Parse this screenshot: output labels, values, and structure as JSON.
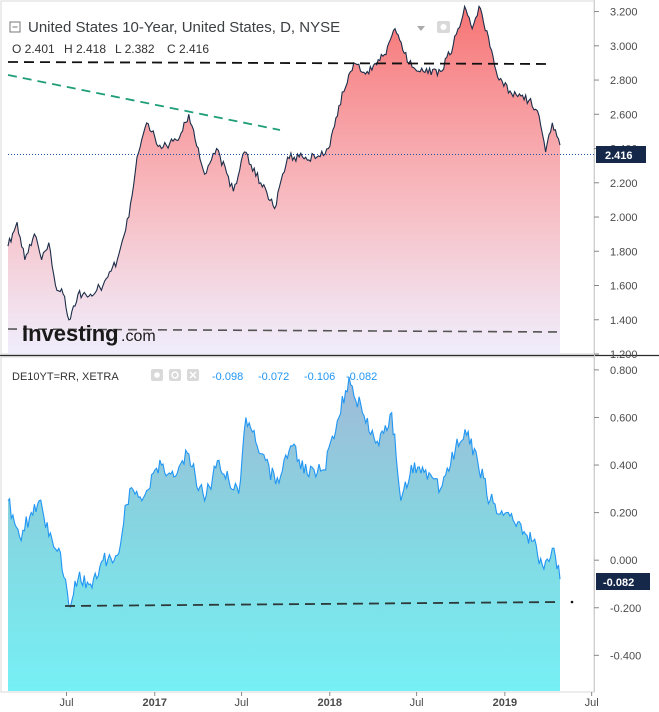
{
  "chart_data": [
    {
      "type": "area",
      "title": "United States 10-Year, United States, D, NYSE",
      "ohlc": {
        "o": "O 2.401",
        "h": "H 2.418",
        "l": "L 2.382",
        "c": "C 2.416"
      },
      "last_value": "2.416",
      "ylim": [
        1.2,
        3.25
      ],
      "yticks": [
        "3.200",
        "3.000",
        "2.800",
        "2.600",
        "2.400",
        "2.200",
        "2.000",
        "1.800",
        "1.600",
        "1.400",
        "1.200"
      ],
      "x_start": "2016-03-01",
      "x_end": "2019-04-26",
      "series": [
        {
          "x": [
            "2016-03-01",
            "2016-03-20",
            "2016-04-05",
            "2016-04-25",
            "2016-05-10",
            "2016-05-25",
            "2016-06-08",
            "2016-06-24",
            "2016-07-06",
            "2016-07-25",
            "2016-08-20",
            "2016-09-15",
            "2016-10-15",
            "2016-11-08",
            "2016-11-25",
            "2016-12-15",
            "2017-01-15",
            "2017-02-15",
            "2017-03-13",
            "2017-04-15",
            "2017-05-10",
            "2017-06-14",
            "2017-07-07",
            "2017-08-10",
            "2017-09-08",
            "2017-10-05",
            "2017-11-05",
            "2017-12-05",
            "2017-12-29",
            "2018-01-20",
            "2018-02-20",
            "2018-03-20",
            "2018-04-25",
            "2018-05-17",
            "2018-06-15",
            "2018-07-15",
            "2018-08-20",
            "2018-09-15",
            "2018-10-09",
            "2018-10-25",
            "2018-11-08",
            "2018-11-28",
            "2018-12-20",
            "2019-01-15",
            "2019-02-20",
            "2019-03-10",
            "2019-03-27",
            "2019-04-10",
            "2019-04-26"
          ],
          "values": [
            1.83,
            1.97,
            1.75,
            1.9,
            1.75,
            1.85,
            1.6,
            1.55,
            1.4,
            1.55,
            1.55,
            1.6,
            1.75,
            2.0,
            2.35,
            2.55,
            2.4,
            2.45,
            2.6,
            2.25,
            2.4,
            2.15,
            2.38,
            2.2,
            2.05,
            2.35,
            2.35,
            2.35,
            2.4,
            2.65,
            2.9,
            2.85,
            2.95,
            3.1,
            2.9,
            2.85,
            2.85,
            3.0,
            3.23,
            3.1,
            3.23,
            3.05,
            2.8,
            2.72,
            2.68,
            2.62,
            2.38,
            2.55,
            2.42
          ]
        }
      ],
      "annotations": [
        "Investing.com"
      ]
    },
    {
      "type": "area",
      "title": "DE10YT=RR, XETRA",
      "values_text": [
        "-0.098",
        "-0.072",
        "-0.106",
        "-0.082"
      ],
      "last_value": "-0.082",
      "ylim": [
        -0.55,
        0.85
      ],
      "yticks": [
        "0.800",
        "0.600",
        "0.400",
        "0.200",
        "0.000",
        "-0.200",
        "-0.400"
      ],
      "series": [
        {
          "x": [
            "2016-03-01",
            "2016-03-25",
            "2016-04-15",
            "2016-05-05",
            "2016-05-25",
            "2016-06-15",
            "2016-07-06",
            "2016-07-25",
            "2016-08-20",
            "2016-09-15",
            "2016-10-15",
            "2016-11-10",
            "2016-12-05",
            "2017-01-15",
            "2017-02-10",
            "2017-03-10",
            "2017-04-15",
            "2017-05-15",
            "2017-06-25",
            "2017-07-10",
            "2017-08-20",
            "2017-09-10",
            "2017-10-15",
            "2017-11-15",
            "2017-12-20",
            "2018-01-20",
            "2018-02-10",
            "2018-03-10",
            "2018-04-10",
            "2018-05-10",
            "2018-05-29",
            "2018-06-20",
            "2018-07-20",
            "2018-08-20",
            "2018-09-20",
            "2018-10-10",
            "2018-11-05",
            "2018-12-01",
            "2019-01-05",
            "2019-02-10",
            "2019-03-01",
            "2019-03-20",
            "2019-04-10",
            "2019-04-26"
          ],
          "values": [
            0.25,
            0.1,
            0.18,
            0.25,
            0.1,
            0.05,
            -0.19,
            -0.08,
            -0.1,
            0.0,
            0.02,
            0.3,
            0.25,
            0.4,
            0.35,
            0.45,
            0.25,
            0.42,
            0.28,
            0.6,
            0.42,
            0.32,
            0.48,
            0.36,
            0.38,
            0.6,
            0.77,
            0.62,
            0.5,
            0.62,
            0.25,
            0.4,
            0.38,
            0.3,
            0.47,
            0.55,
            0.42,
            0.25,
            0.2,
            0.12,
            0.08,
            -0.02,
            0.05,
            -0.08
          ]
        }
      ]
    }
  ],
  "x_axis": {
    "labels": [
      "Jul",
      "2017",
      "Jul",
      "2018",
      "Jul",
      "2019",
      "Jul"
    ],
    "dates": [
      "2016-07-01",
      "2017-01-01",
      "2017-07-01",
      "2018-01-01",
      "2018-07-01",
      "2019-01-01",
      "2019-07-01"
    ]
  },
  "colors": {
    "line_top": "#1c2e4a",
    "fill_top": "#f77d7d",
    "line_bottom": "#2196f3",
    "fill_bottom": "#79e6ee",
    "tag_bg": "#16284a",
    "dashed_black": "#111111",
    "dashed_green": "#1e9e78",
    "dotted_blue": "#1f4fa8"
  },
  "icons": [
    "collapse-square-icon",
    "dropdown-arrow-icon",
    "eye-icon",
    "gear-icon",
    "close-icon"
  ]
}
